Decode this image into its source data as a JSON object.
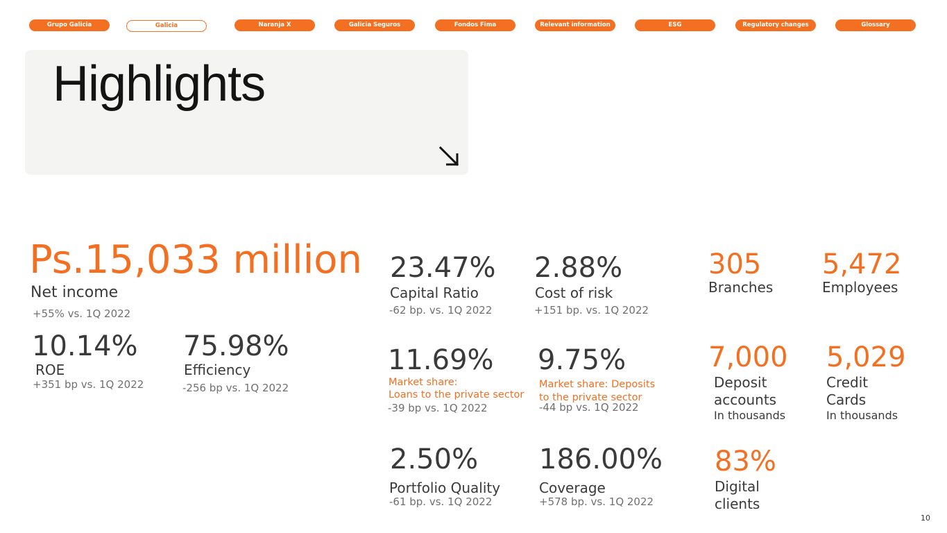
{
  "nav": [
    {
      "label": "Grupo Galicia",
      "active": false
    },
    {
      "label": "Galicia",
      "active": true
    },
    {
      "label": "Naranja X",
      "active": false
    },
    {
      "label": "Galicia Seguros",
      "active": false
    },
    {
      "label": "Fondos Fima",
      "active": false
    },
    {
      "label": "Relevant information",
      "active": false
    },
    {
      "label": "ESG",
      "active": false
    },
    {
      "label": "Regulatory changes",
      "active": false
    },
    {
      "label": "Glossary",
      "active": false
    }
  ],
  "title": "Highlights",
  "arrow_icon": "arrow-down-right-icon",
  "net_income": {
    "value": "Ps.15,033 million",
    "label": "Net income",
    "change": "+55% vs. 1Q 2022"
  },
  "roe": {
    "value": "10.14%",
    "label": "ROE",
    "change": "+351 bp vs. 1Q 2022"
  },
  "efficiency": {
    "value": "75.98%",
    "label": "Efficiency",
    "change": "-256 bp vs. 1Q 2022"
  },
  "capital_ratio": {
    "value": "23.47%",
    "label": "Capital Ratio",
    "change": "-62 bp. vs. 1Q 2022"
  },
  "cost_of_risk": {
    "value": "2.88%",
    "label": "Cost of risk",
    "change": "+151 bp. vs. 1Q 2022"
  },
  "loans_share": {
    "value": "11.69%",
    "label_line1": "Market share:",
    "label_line2": "Loans to the private sector",
    "change": "-39 bp vs. 1Q 2022"
  },
  "deposits_share": {
    "value": "9.75%",
    "label_line1": "Market share: Deposits",
    "label_line2": "to the private sector",
    "change": "-44 bp vs. 1Q 2022"
  },
  "portfolio_quality": {
    "value": "2.50%",
    "label": "Portfolio Quality",
    "change": "-61 bp. vs. 1Q 2022"
  },
  "coverage": {
    "value": "186.00%",
    "label": "Coverage",
    "change": "+578 bp. vs. 1Q 2022"
  },
  "branches": {
    "value": "305",
    "label": "Branches"
  },
  "employees": {
    "value": "5,472",
    "label": "Employees"
  },
  "deposit_accounts": {
    "value": "7,000",
    "label_line1": "Deposit",
    "label_line2": "accounts",
    "unit": "In thousands"
  },
  "credit_cards": {
    "value": "5,029",
    "label_line1": "Credit",
    "label_line2": "Cards",
    "unit": "In thousands"
  },
  "digital_clients": {
    "value": "83%",
    "label_line1": "Digital",
    "label_line2": "clients"
  },
  "page_number": "10",
  "colors": {
    "accent": "#f36f21",
    "text": "#3a3a3a",
    "muted": "#707070",
    "card": "#f4f4f3"
  }
}
